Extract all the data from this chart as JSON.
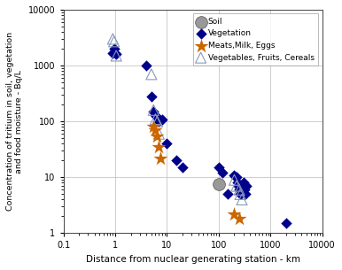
{
  "vegetation": {
    "x": [
      0.9,
      0.95,
      1.0,
      1.05,
      4.0,
      5.0,
      5.5,
      6.0,
      6.5,
      7.0,
      8.0,
      10.0,
      15.0,
      20.0,
      100.0,
      120.0,
      150.0,
      200.0,
      220.0,
      230.0,
      240.0,
      250.0,
      260.0,
      270.0,
      280.0,
      290.0,
      300.0,
      310.0,
      320.0,
      330.0,
      340.0,
      2000.0
    ],
    "y": [
      1700,
      2000,
      1700,
      1600,
      1000,
      280,
      150,
      130,
      120,
      100,
      110,
      40,
      20,
      15,
      15,
      12,
      5,
      11,
      10,
      8,
      7,
      6,
      5,
      5,
      7,
      6,
      8,
      5,
      6,
      5,
      7,
      1.5
    ],
    "color": "#00008B",
    "marker": "D",
    "label": "Vegetation",
    "markersize": 4
  },
  "soil": {
    "x": [
      100.0
    ],
    "y": [
      7.5
    ],
    "color": "#999999",
    "marker": "o",
    "label": "Soil",
    "markersize": 7
  },
  "meats": {
    "x": [
      5.5,
      6.0,
      6.5,
      7.0,
      7.5,
      200.0,
      250.0
    ],
    "y": [
      80,
      70,
      55,
      35,
      22,
      2.2,
      1.8
    ],
    "color": "#CC6600",
    "marker": "*",
    "label": "Meats,Milk, Eggs",
    "markersize": 7
  },
  "vegetables": {
    "x": [
      0.9,
      0.95,
      1.05,
      5.0,
      5.5,
      6.0,
      6.5,
      7.0,
      200.0,
      220.0,
      250.0,
      260.0,
      280.0
    ],
    "y": [
      3000,
      2700,
      1500,
      700,
      160,
      110,
      100,
      60,
      9,
      7,
      6,
      5,
      4
    ],
    "marker": "^",
    "label": "Vegetables, Fruits, Cereals",
    "markersize": 5,
    "facecolor": "none",
    "edgecolor": "#8899BB"
  },
  "xlabel": "Distance from nuclear generating station - km",
  "ylabel": "Concentration of tritium in soil, vegetation\nand food moisture - Bq/L",
  "xlim": [
    0.1,
    10000
  ],
  "ylim": [
    1,
    10000
  ],
  "background": "#FFFFFF",
  "legend_order": [
    "soil",
    "vegetation",
    "meats",
    "vegetables"
  ]
}
